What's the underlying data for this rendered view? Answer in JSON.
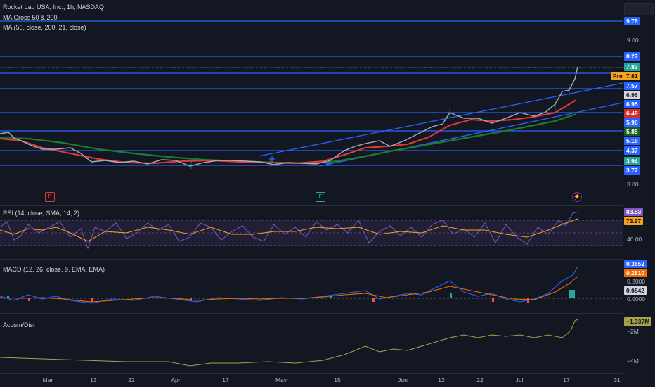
{
  "header": {
    "symbol_title": "Rocket Lab USA, Inc., 1h, NASDAQ",
    "ma_cross_label": "MA Cross 50 & 200",
    "ma_label": "MA (50, close, 200, 21, close)"
  },
  "price_axis": {
    "ticks": [
      "9.00",
      "3.00"
    ],
    "tags": [
      {
        "text": "9.78",
        "color": "#2962ff"
      },
      {
        "text": "8.27",
        "color": "#2962ff"
      },
      {
        "text": "7.83",
        "color": "#26a69a"
      },
      {
        "text": "7.81",
        "color": "#f7a21b"
      },
      {
        "text": "7.57",
        "color": "#2962ff"
      },
      {
        "text": "6.96",
        "color": "#d1d4dc"
      },
      {
        "text": "6.95",
        "color": "#2962ff"
      },
      {
        "text": "6.49",
        "color": "#d32f2f"
      },
      {
        "text": "5.96",
        "color": "#2962ff"
      },
      {
        "text": "5.85",
        "color": "#1b5e20"
      },
      {
        "text": "5.18",
        "color": "#2962ff"
      },
      {
        "text": "4.37",
        "color": "#2962ff"
      },
      {
        "text": "3.94",
        "color": "#26a69a"
      },
      {
        "text": "3.77",
        "color": "#2962ff"
      }
    ],
    "pre_label": "Pre"
  },
  "events": {
    "earnings_1": "E",
    "earnings_2": "E"
  },
  "rsi": {
    "label": "RSI (14, close, SMA, 14, 2)",
    "tag_rsi": "83.83",
    "tag_sma": "73.97",
    "tick": "40.00"
  },
  "macd": {
    "label": "MACD (12, 26, close, 9, EMA, EMA)",
    "tag_macd": "0.3652",
    "tag_signal": "0.2810",
    "tag_hist": "0.0842",
    "ticks": [
      "0.2000",
      "0.0000"
    ]
  },
  "accum": {
    "label": "Accum/Dist",
    "tag": "−1.337M",
    "ticks": [
      "−2M",
      "−4M"
    ]
  },
  "time_axis": [
    "Mar",
    "13",
    "22",
    "Apr",
    "17",
    "May",
    "15",
    "Jun",
    "12",
    "22",
    "Jul",
    "17",
    "31"
  ],
  "chart_data": [
    {
      "type": "line",
      "title": "Rocket Lab USA, Inc., 1h, NASDAQ",
      "series": [
        {
          "name": "Price",
          "x": [
            "Mar",
            "13",
            "22",
            "Apr",
            "17",
            "May",
            "15",
            "Jun",
            "12",
            "22",
            "Jul",
            "17"
          ],
          "values": [
            5.2,
            4.4,
            3.9,
            3.85,
            3.9,
            3.9,
            3.95,
            4.7,
            6.0,
            6.2,
            6.3,
            7.8
          ]
        }
      ],
      "horizontal_levels": [
        9.78,
        8.27,
        7.81,
        7.57,
        6.95,
        5.96,
        5.18,
        4.37,
        3.77
      ],
      "ylim": [
        3.0,
        10.0
      ]
    }
  ]
}
